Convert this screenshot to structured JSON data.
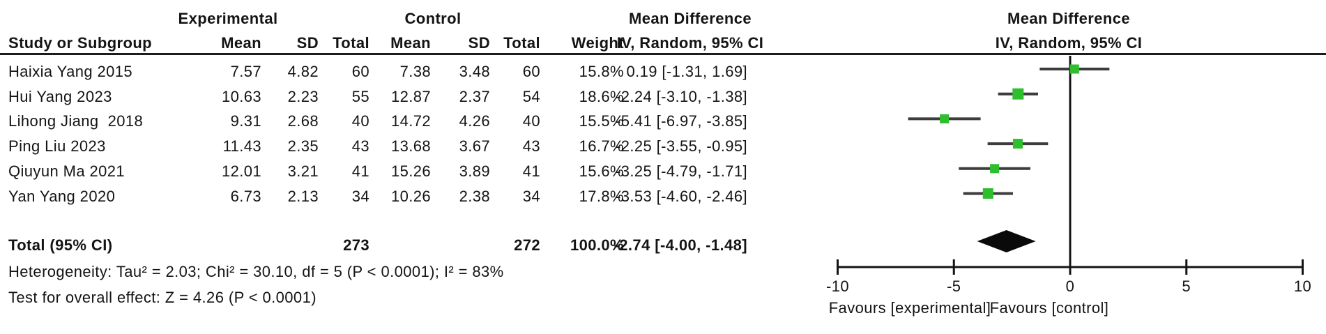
{
  "chart_data": {
    "type": "forest",
    "effect_label": "Mean Difference",
    "method_label": "IV, Random, 95% CI",
    "group_headers": {
      "experimental": "Experimental",
      "control": "Control"
    },
    "column_headers": {
      "study": "Study or Subgroup",
      "mean": "Mean",
      "sd": "SD",
      "total": "Total",
      "weight": "Weight"
    },
    "studies": [
      {
        "label": "Haixia Yang 2015",
        "exp_mean": "7.57",
        "exp_sd": "4.82",
        "exp_total": "60",
        "ctrl_mean": "7.38",
        "ctrl_sd": "3.48",
        "ctrl_total": "60",
        "weight": "15.8%",
        "ci_text": "0.19 [-1.31, 1.69]",
        "md": 0.19,
        "ci_low": -1.31,
        "ci_high": 1.69,
        "weight_val": 15.8
      },
      {
        "label": "Hui Yang 2023",
        "exp_mean": "10.63",
        "exp_sd": "2.23",
        "exp_total": "55",
        "ctrl_mean": "12.87",
        "ctrl_sd": "2.37",
        "ctrl_total": "54",
        "weight": "18.6%",
        "ci_text": "-2.24 [-3.10, -1.38]",
        "md": -2.24,
        "ci_low": -3.1,
        "ci_high": -1.38,
        "weight_val": 18.6
      },
      {
        "label": "Lihong Jiang  2018",
        "exp_mean": "9.31",
        "exp_sd": "2.68",
        "exp_total": "40",
        "ctrl_mean": "14.72",
        "ctrl_sd": "4.26",
        "ctrl_total": "40",
        "weight": "15.5%",
        "ci_text": "-5.41 [-6.97, -3.85]",
        "md": -5.41,
        "ci_low": -6.97,
        "ci_high": -3.85,
        "weight_val": 15.5
      },
      {
        "label": "Ping Liu 2023",
        "exp_mean": "11.43",
        "exp_sd": "2.35",
        "exp_total": "43",
        "ctrl_mean": "13.68",
        "ctrl_sd": "3.67",
        "ctrl_total": "43",
        "weight": "16.7%",
        "ci_text": "-2.25 [-3.55, -0.95]",
        "md": -2.25,
        "ci_low": -3.55,
        "ci_high": -0.95,
        "weight_val": 16.7
      },
      {
        "label": "Qiuyun Ma 2021",
        "exp_mean": "12.01",
        "exp_sd": "3.21",
        "exp_total": "41",
        "ctrl_mean": "15.26",
        "ctrl_sd": "3.89",
        "ctrl_total": "41",
        "weight": "15.6%",
        "ci_text": "-3.25 [-4.79, -1.71]",
        "md": -3.25,
        "ci_low": -4.79,
        "ci_high": -1.71,
        "weight_val": 15.6
      },
      {
        "label": "Yan Yang 2020",
        "exp_mean": "6.73",
        "exp_sd": "2.13",
        "exp_total": "34",
        "ctrl_mean": "10.26",
        "ctrl_sd": "2.38",
        "ctrl_total": "34",
        "weight": "17.8%",
        "ci_text": "-3.53 [-4.60, -2.46]",
        "md": -3.53,
        "ci_low": -4.6,
        "ci_high": -2.46,
        "weight_val": 17.8
      }
    ],
    "total": {
      "label": "Total (95% CI)",
      "exp_total": "273",
      "ctrl_total": "272",
      "weight": "100.0%",
      "ci_text": "-2.74 [-4.00, -1.48]",
      "md": -2.74,
      "ci_low": -4.0,
      "ci_high": -1.48
    },
    "heterogeneity": "Heterogeneity: Tau² = 2.03; Chi² = 30.10, df = 5 (P < 0.0001); I² = 83%",
    "overall_effect": "Test for overall effect: Z = 4.26 (P < 0.0001)",
    "x_axis": {
      "min": -10,
      "max": 10,
      "tick_values": [
        -10,
        -5,
        0,
        5,
        10
      ],
      "ticks": [
        "-10",
        "-5",
        "0",
        "5",
        "10"
      ]
    },
    "favours_left": "Favours [experimental]",
    "favours_right": "Favours [control]",
    "marker_color": "#2EBE2E",
    "ci_line_color": "#3d3d3d",
    "diamond_color": "#0a0a0a",
    "axis_color": "#141414"
  }
}
